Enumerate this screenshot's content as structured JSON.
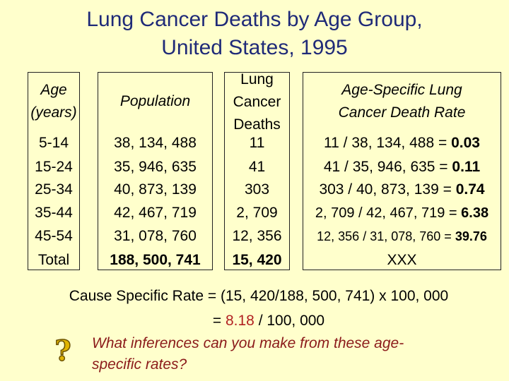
{
  "title": {
    "line1": "Lung Cancer Deaths by Age Group,",
    "line2": "United States, 1995"
  },
  "table": {
    "headers": {
      "age": [
        "Age",
        "(years)"
      ],
      "population": "Population",
      "deaths": [
        "Lung",
        "Cancer",
        "Deaths"
      ],
      "rate": [
        "Age-Specific Lung",
        "Cancer Death Rate"
      ]
    },
    "rows": [
      {
        "age": "5-14",
        "population": "38, 134, 488",
        "deaths": "11",
        "rate_calc": "11 / 38, 134, 488 = ",
        "rate_value": "0.03"
      },
      {
        "age": "15-24",
        "population": "35, 946, 635",
        "deaths": "41",
        "rate_calc": "41 / 35, 946, 635 = ",
        "rate_value": "0.11"
      },
      {
        "age": "25-34",
        "population": "40, 873, 139",
        "deaths": "303",
        "rate_calc": "303 / 40, 873, 139 = ",
        "rate_value": "0.74"
      },
      {
        "age": "35-44",
        "population": "42, 467, 719",
        "deaths": "2, 709",
        "rate_calc": "2, 709 / 42, 467, 719 = ",
        "rate_value": "6.38"
      },
      {
        "age": "45-54",
        "population": "31, 078, 760",
        "deaths": "12, 356",
        "rate_calc": "12, 356 / 31, 078, 760 = ",
        "rate_value": "39.76"
      },
      {
        "age": "Total",
        "population": "188, 500, 741",
        "deaths": "15, 420",
        "rate_calc": "XXX",
        "rate_value": ""
      }
    ]
  },
  "formula": {
    "line1": "Cause Specific Rate = (15, 420/188, 500, 741) x 100, 000",
    "line2_prefix": "= ",
    "line2_value": "8.18",
    "line2_suffix": " / 100, 000"
  },
  "question": {
    "icon": "question-mark-icon",
    "icon_char": "?",
    "line1": "What inferences can you make from these age-",
    "line2": "specific rates?"
  },
  "colors": {
    "background": "#FFFFCC",
    "title": "#1F2A78",
    "highlight": "#B22222",
    "question_text": "#8B1A1A"
  }
}
